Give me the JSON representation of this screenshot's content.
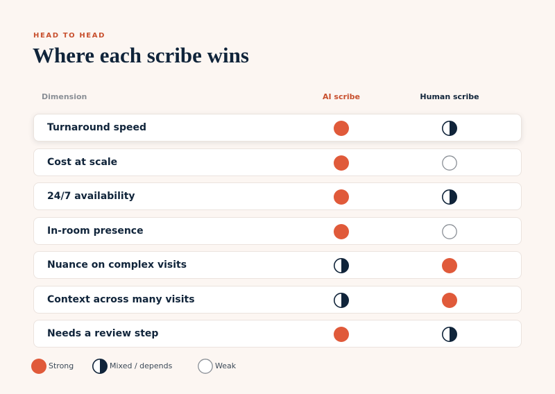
{
  "eyebrow": "HEAD TO HEAD",
  "title": "Where each scribe wins",
  "columns": {
    "dimension": "Dimension",
    "ai": "AI scribe",
    "human": "Human scribe"
  },
  "rows": [
    {
      "label": "Turnaround speed",
      "ai": "strong",
      "human": "mixed"
    },
    {
      "label": "Cost at scale",
      "ai": "strong",
      "human": "weak"
    },
    {
      "label": "24/7 availability",
      "ai": "strong",
      "human": "mixed"
    },
    {
      "label": "In-room presence",
      "ai": "strong",
      "human": "weak"
    },
    {
      "label": "Nuance on complex visits",
      "ai": "mixed",
      "human": "strong"
    },
    {
      "label": "Context across many visits",
      "ai": "mixed",
      "human": "strong"
    },
    {
      "label": "Needs a review step",
      "ai": "strong",
      "human": "mixed"
    }
  ],
  "legend": [
    {
      "rating": "strong",
      "label": "Strong"
    },
    {
      "rating": "mixed",
      "label": "Mixed / depends"
    },
    {
      "rating": "weak",
      "label": "Weak"
    }
  ]
}
